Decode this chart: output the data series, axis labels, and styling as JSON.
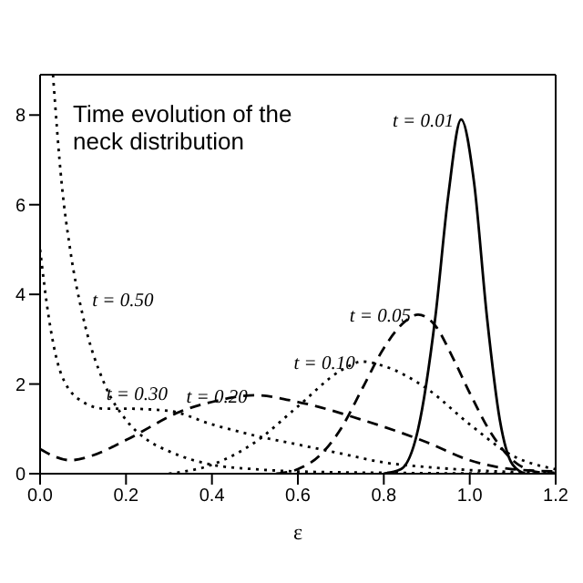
{
  "chart_data": {
    "type": "line",
    "xlabel": "ε",
    "xlim": [
      0,
      1.2
    ],
    "ylim": [
      0,
      8.9
    ],
    "xticks": [
      {
        "value": 0,
        "label": "0.0"
      },
      {
        "value": 0.2,
        "label": "0.2"
      },
      {
        "value": 0.4,
        "label": "0.4"
      },
      {
        "value": 0.6,
        "label": "0.6"
      },
      {
        "value": 0.8,
        "label": "0.8"
      },
      {
        "value": 1,
        "label": "1.0"
      },
      {
        "value": 1.2,
        "label": "1.2"
      }
    ],
    "yticks": [
      0,
      2,
      4,
      6,
      8
    ],
    "grid": false,
    "legend": false,
    "marker": "none",
    "series": [
      {
        "name": "t = 0.01",
        "color": "#000000",
        "line_style": "solid",
        "x": [
          0.8,
          0.84,
          0.88,
          0.92,
          0.95,
          0.98,
          1.01,
          1.04,
          1.07,
          1.1,
          1.13
        ],
        "values": [
          0,
          0.1,
          1,
          3.5,
          6.2,
          7.9,
          6.5,
          3.5,
          1.2,
          0.2,
          0
        ]
      },
      {
        "name": "t = 0.05",
        "color": "#000000",
        "line_style": "dashed",
        "x": [
          0.55,
          0.6,
          0.65,
          0.7,
          0.75,
          0.8,
          0.85,
          0.88,
          0.92,
          0.96,
          1,
          1.05,
          1.1,
          1.15,
          1.2
        ],
        "values": [
          0,
          0.1,
          0.4,
          1,
          1.9,
          2.8,
          3.4,
          3.55,
          3.3,
          2.6,
          1.8,
          0.9,
          0.3,
          0.05,
          0
        ]
      },
      {
        "name": "t = 0.10",
        "color": "#000000",
        "line_style": "dotted",
        "x": [
          0.3,
          0.4,
          0.5,
          0.6,
          0.7,
          0.75,
          0.8,
          0.9,
          1,
          1.1,
          1.2
        ],
        "values": [
          0,
          0.2,
          0.7,
          1.5,
          2.3,
          2.5,
          2.4,
          1.9,
          1.1,
          0.4,
          0.1
        ]
      },
      {
        "name": "t = 0.20",
        "color": "#000000",
        "line_style": "dashed",
        "x": [
          0,
          0.03,
          0.07,
          0.12,
          0.2,
          0.33,
          0.4,
          0.5,
          0.6,
          0.75,
          0.9,
          1,
          1.1,
          1.2
        ],
        "values": [
          0.55,
          0.4,
          0.3,
          0.4,
          0.75,
          1.4,
          1.6,
          1.75,
          1.6,
          1.2,
          0.7,
          0.3,
          0.1,
          0.05
        ]
      },
      {
        "name": "t = 0.30",
        "color": "#000000",
        "line_style": "dotted",
        "x": [
          0,
          0.02,
          0.05,
          0.1,
          0.15,
          0.2,
          0.3,
          0.4,
          0.5,
          0.6,
          0.7,
          0.8,
          0.9,
          1,
          1.2
        ],
        "values": [
          5,
          3.5,
          2.2,
          1.6,
          1.45,
          1.45,
          1.4,
          1.1,
          0.85,
          0.65,
          0.45,
          0.25,
          0.15,
          0.08,
          0.02
        ]
      },
      {
        "name": "t = 0.50",
        "color": "#000000",
        "line_style": "dotted",
        "x": [
          0.03,
          0.05,
          0.07,
          0.1,
          0.15,
          0.2,
          0.25,
          0.3,
          0.4,
          0.5,
          0.6,
          0.8,
          1.2
        ],
        "values": [
          8.9,
          6.5,
          5,
          3.5,
          2,
          1.2,
          0.75,
          0.5,
          0.2,
          0.1,
          0.05,
          0.02,
          0
        ]
      }
    ],
    "annotations": [
      "Time evolution of the neck distribution"
    ]
  }
}
